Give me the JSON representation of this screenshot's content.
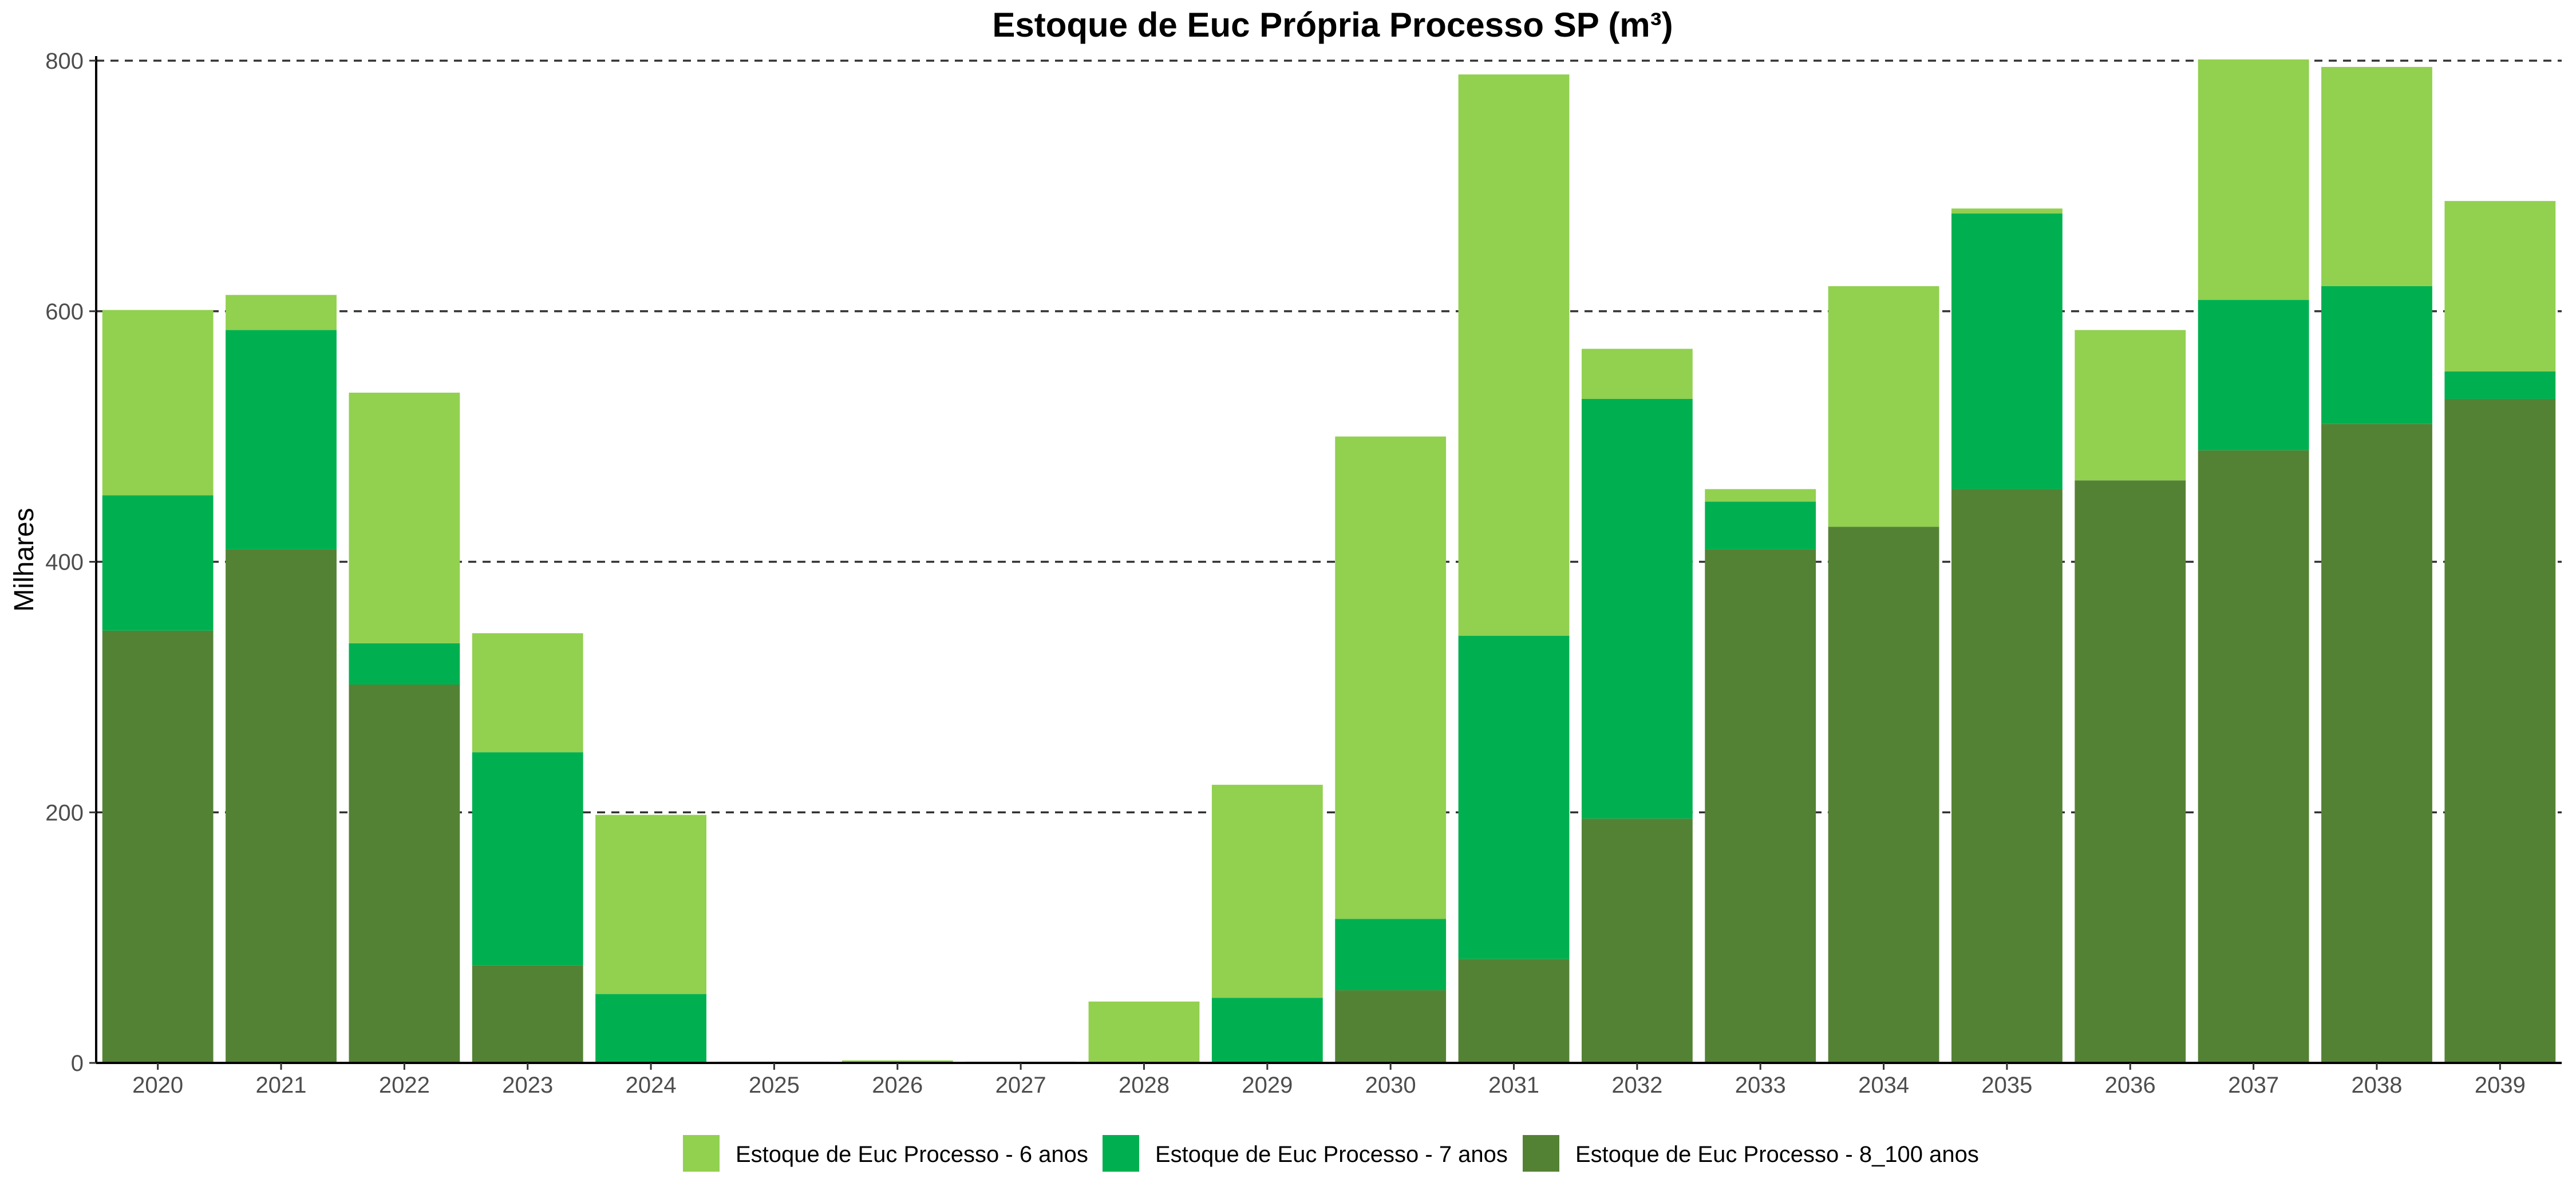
{
  "chart_data": {
    "type": "bar",
    "stacked": true,
    "title": "Estoque de Euc Própria Processo SP (m³)",
    "xlabel": "",
    "ylabel": "Milhares",
    "ylim": [
      0,
      800
    ],
    "yticks": [
      0,
      200,
      400,
      600,
      800
    ],
    "grid": "horizontal-dashed",
    "legend_position": "bottom",
    "categories": [
      "2020",
      "2021",
      "2022",
      "2023",
      "2024",
      "2025",
      "2026",
      "2027",
      "2028",
      "2029",
      "2030",
      "2031",
      "2032",
      "2033",
      "2034",
      "2035",
      "2036",
      "2037",
      "2038",
      "2039"
    ],
    "series": [
      {
        "name": "Estoque de Euc Processo - 8_100 anos",
        "color": "#548235",
        "values": [
          345,
          410,
          302,
          78,
          0,
          0,
          0,
          0,
          0,
          0,
          58,
          83,
          195,
          410,
          428,
          458,
          465,
          489,
          510,
          530
        ]
      },
      {
        "name": "Estoque de Euc Processo - 7 anos",
        "color": "#00B050",
        "values": [
          108,
          175,
          33,
          170,
          55,
          0,
          0,
          0,
          0,
          52,
          57,
          258,
          335,
          38,
          0,
          220,
          0,
          120,
          110,
          22
        ]
      },
      {
        "name": "Estoque de Euc Processo - 6 anos",
        "color": "#92D050",
        "values": [
          148,
          28,
          200,
          95,
          143,
          1,
          2,
          1,
          49,
          170,
          385,
          448,
          40,
          10,
          192,
          4,
          120,
          192,
          175,
          136
        ]
      }
    ],
    "legend_order": [
      "Estoque de Euc Processo - 6 anos",
      "Estoque de Euc Processo - 7 anos",
      "Estoque de Euc Processo - 8_100 anos"
    ]
  }
}
